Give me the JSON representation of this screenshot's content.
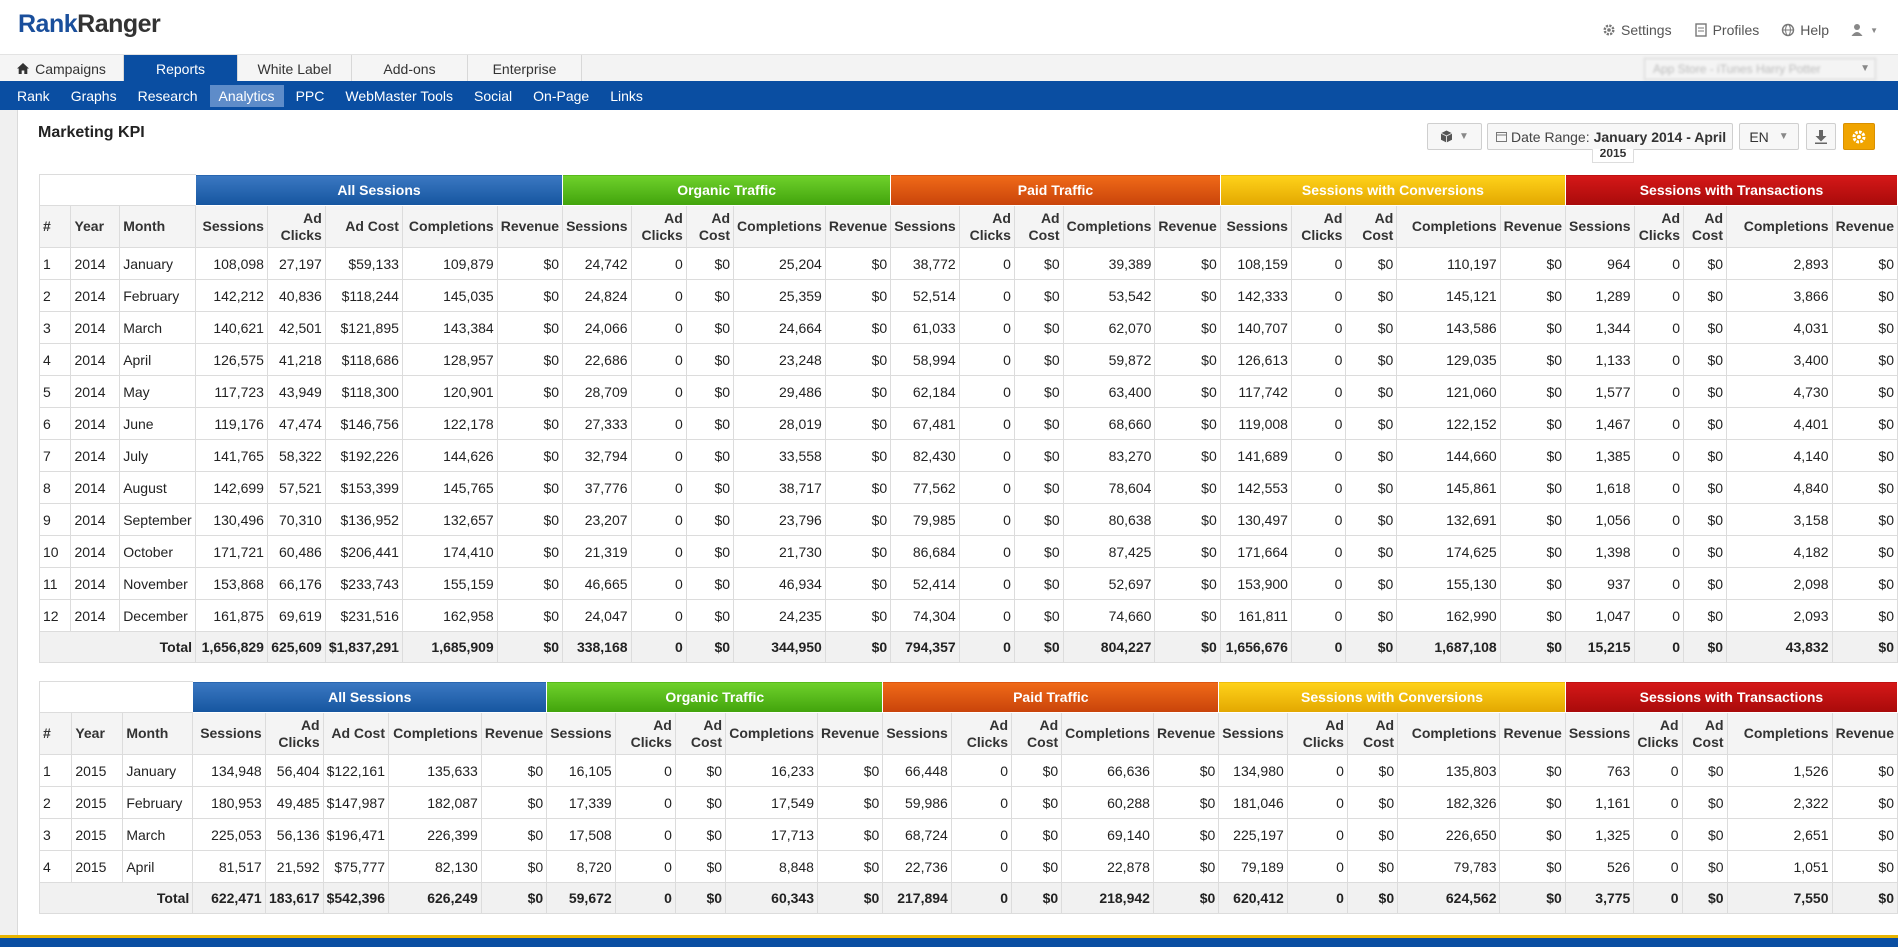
{
  "logo": {
    "part1": "Rank",
    "part2": "Ranger"
  },
  "top_links": [
    {
      "label": "Settings",
      "icon": "gear-icon"
    },
    {
      "label": "Profiles",
      "icon": "profiles-icon"
    },
    {
      "label": "Help",
      "icon": "globe-icon"
    }
  ],
  "main_tabs": [
    {
      "label": "Campaigns",
      "active": false
    },
    {
      "label": "Reports",
      "active": true
    },
    {
      "label": "White Label",
      "active": false
    },
    {
      "label": "Add-ons",
      "active": false
    },
    {
      "label": "Enterprise",
      "active": false
    }
  ],
  "profile_select": {
    "value": "App Store - iTunes Harry Potter"
  },
  "sub_nav": [
    {
      "label": "Rank",
      "active": false
    },
    {
      "label": "Graphs",
      "active": false
    },
    {
      "label": "Research",
      "active": false
    },
    {
      "label": "Analytics",
      "active": true
    },
    {
      "label": "PPC",
      "active": false
    },
    {
      "label": "WebMaster Tools",
      "active": false
    },
    {
      "label": "Social",
      "active": false
    },
    {
      "label": "On-Page",
      "active": false
    },
    {
      "label": "Links",
      "active": false
    }
  ],
  "page_title": "Marketing KPI",
  "toolbar": {
    "date_label": "Date Range:",
    "date_value": "January 2014 - April",
    "date_overflow": "2015",
    "language": "EN"
  },
  "group_headers": [
    "All Sessions",
    "Organic Traffic",
    "Paid Traffic",
    "Sessions with Conversions",
    "Sessions with Transactions"
  ],
  "group_colors": {
    "all": "#2a69b4",
    "organic": "#58bb1a",
    "paid": "#de5512",
    "conversions": "#f2bd07",
    "transactions": "#bf1010"
  },
  "column_headers": {
    "num": "#",
    "year": "Year",
    "month": "Month",
    "sessions": "Sessions",
    "ad_clicks": "Ad Clicks",
    "ad_cost": "Ad Cost",
    "completions": "Completions",
    "revenue": "Revenue"
  },
  "tables": [
    {
      "rows": [
        [
          "1",
          "2014",
          "January",
          "108,098",
          "27,197",
          "$59,133",
          "109,879",
          "$0",
          "24,742",
          "0",
          "$0",
          "25,204",
          "$0",
          "38,772",
          "0",
          "$0",
          "39,389",
          "$0",
          "108,159",
          "0",
          "$0",
          "110,197",
          "$0",
          "964",
          "0",
          "$0",
          "2,893",
          "$0"
        ],
        [
          "2",
          "2014",
          "February",
          "142,212",
          "40,836",
          "$118,244",
          "145,035",
          "$0",
          "24,824",
          "0",
          "$0",
          "25,359",
          "$0",
          "52,514",
          "0",
          "$0",
          "53,542",
          "$0",
          "142,333",
          "0",
          "$0",
          "145,121",
          "$0",
          "1,289",
          "0",
          "$0",
          "3,866",
          "$0"
        ],
        [
          "3",
          "2014",
          "March",
          "140,621",
          "42,501",
          "$121,895",
          "143,384",
          "$0",
          "24,066",
          "0",
          "$0",
          "24,664",
          "$0",
          "61,033",
          "0",
          "$0",
          "62,070",
          "$0",
          "140,707",
          "0",
          "$0",
          "143,586",
          "$0",
          "1,344",
          "0",
          "$0",
          "4,031",
          "$0"
        ],
        [
          "4",
          "2014",
          "April",
          "126,575",
          "41,218",
          "$118,686",
          "128,957",
          "$0",
          "22,686",
          "0",
          "$0",
          "23,248",
          "$0",
          "58,994",
          "0",
          "$0",
          "59,872",
          "$0",
          "126,613",
          "0",
          "$0",
          "129,035",
          "$0",
          "1,133",
          "0",
          "$0",
          "3,400",
          "$0"
        ],
        [
          "5",
          "2014",
          "May",
          "117,723",
          "43,949",
          "$118,300",
          "120,901",
          "$0",
          "28,709",
          "0",
          "$0",
          "29,486",
          "$0",
          "62,184",
          "0",
          "$0",
          "63,400",
          "$0",
          "117,742",
          "0",
          "$0",
          "121,060",
          "$0",
          "1,577",
          "0",
          "$0",
          "4,730",
          "$0"
        ],
        [
          "6",
          "2014",
          "June",
          "119,176",
          "47,474",
          "$146,756",
          "122,178",
          "$0",
          "27,333",
          "0",
          "$0",
          "28,019",
          "$0",
          "67,481",
          "0",
          "$0",
          "68,660",
          "$0",
          "119,008",
          "0",
          "$0",
          "122,152",
          "$0",
          "1,467",
          "0",
          "$0",
          "4,401",
          "$0"
        ],
        [
          "7",
          "2014",
          "July",
          "141,765",
          "58,322",
          "$192,226",
          "144,626",
          "$0",
          "32,794",
          "0",
          "$0",
          "33,558",
          "$0",
          "82,430",
          "0",
          "$0",
          "83,270",
          "$0",
          "141,689",
          "0",
          "$0",
          "144,660",
          "$0",
          "1,385",
          "0",
          "$0",
          "4,140",
          "$0"
        ],
        [
          "8",
          "2014",
          "August",
          "142,699",
          "57,521",
          "$153,399",
          "145,765",
          "$0",
          "37,776",
          "0",
          "$0",
          "38,717",
          "$0",
          "77,562",
          "0",
          "$0",
          "78,604",
          "$0",
          "142,553",
          "0",
          "$0",
          "145,861",
          "$0",
          "1,618",
          "0",
          "$0",
          "4,840",
          "$0"
        ],
        [
          "9",
          "2014",
          "September",
          "130,496",
          "70,310",
          "$136,952",
          "132,657",
          "$0",
          "23,207",
          "0",
          "$0",
          "23,796",
          "$0",
          "79,985",
          "0",
          "$0",
          "80,638",
          "$0",
          "130,497",
          "0",
          "$0",
          "132,691",
          "$0",
          "1,056",
          "0",
          "$0",
          "3,158",
          "$0"
        ],
        [
          "10",
          "2014",
          "October",
          "171,721",
          "60,486",
          "$206,441",
          "174,410",
          "$0",
          "21,319",
          "0",
          "$0",
          "21,730",
          "$0",
          "86,684",
          "0",
          "$0",
          "87,425",
          "$0",
          "171,664",
          "0",
          "$0",
          "174,625",
          "$0",
          "1,398",
          "0",
          "$0",
          "4,182",
          "$0"
        ],
        [
          "11",
          "2014",
          "November",
          "153,868",
          "66,176",
          "$233,743",
          "155,159",
          "$0",
          "46,665",
          "0",
          "$0",
          "46,934",
          "$0",
          "52,414",
          "0",
          "$0",
          "52,697",
          "$0",
          "153,900",
          "0",
          "$0",
          "155,130",
          "$0",
          "937",
          "0",
          "$0",
          "2,098",
          "$0"
        ],
        [
          "12",
          "2014",
          "December",
          "161,875",
          "69,619",
          "$231,516",
          "162,958",
          "$0",
          "24,047",
          "0",
          "$0",
          "24,235",
          "$0",
          "74,304",
          "0",
          "$0",
          "74,660",
          "$0",
          "161,811",
          "0",
          "$0",
          "162,990",
          "$0",
          "1,047",
          "0",
          "$0",
          "2,093",
          "$0"
        ]
      ],
      "total_label": "Total",
      "totals": [
        "1,656,829",
        "625,609",
        "$1,837,291",
        "1,685,909",
        "$0",
        "338,168",
        "0",
        "$0",
        "344,950",
        "$0",
        "794,357",
        "0",
        "$0",
        "804,227",
        "$0",
        "1,656,676",
        "0",
        "$0",
        "1,687,108",
        "$0",
        "15,215",
        "0",
        "$0",
        "43,832",
        "$0"
      ]
    },
    {
      "rows": [
        [
          "1",
          "2015",
          "January",
          "134,948",
          "56,404",
          "$122,161",
          "135,633",
          "$0",
          "16,105",
          "0",
          "$0",
          "16,233",
          "$0",
          "66,448",
          "0",
          "$0",
          "66,636",
          "$0",
          "134,980",
          "0",
          "$0",
          "135,803",
          "$0",
          "763",
          "0",
          "$0",
          "1,526",
          "$0"
        ],
        [
          "2",
          "2015",
          "February",
          "180,953",
          "49,485",
          "$147,987",
          "182,087",
          "$0",
          "17,339",
          "0",
          "$0",
          "17,549",
          "$0",
          "59,986",
          "0",
          "$0",
          "60,288",
          "$0",
          "181,046",
          "0",
          "$0",
          "182,326",
          "$0",
          "1,161",
          "0",
          "$0",
          "2,322",
          "$0"
        ],
        [
          "3",
          "2015",
          "March",
          "225,053",
          "56,136",
          "$196,471",
          "226,399",
          "$0",
          "17,508",
          "0",
          "$0",
          "17,713",
          "$0",
          "68,724",
          "0",
          "$0",
          "69,140",
          "$0",
          "225,197",
          "0",
          "$0",
          "226,650",
          "$0",
          "1,325",
          "0",
          "$0",
          "2,651",
          "$0"
        ],
        [
          "4",
          "2015",
          "April",
          "81,517",
          "21,592",
          "$75,777",
          "82,130",
          "$0",
          "8,720",
          "0",
          "$0",
          "8,848",
          "$0",
          "22,736",
          "0",
          "$0",
          "22,878",
          "$0",
          "79,189",
          "0",
          "$0",
          "79,783",
          "$0",
          "526",
          "0",
          "$0",
          "1,051",
          "$0"
        ]
      ],
      "total_label": "Total",
      "totals": [
        "622,471",
        "183,617",
        "$542,396",
        "626,249",
        "$0",
        "59,672",
        "0",
        "$0",
        "60,343",
        "$0",
        "217,894",
        "0",
        "$0",
        "218,942",
        "$0",
        "620,412",
        "0",
        "$0",
        "624,562",
        "$0",
        "3,775",
        "0",
        "$0",
        "7,550",
        "$0"
      ]
    }
  ]
}
